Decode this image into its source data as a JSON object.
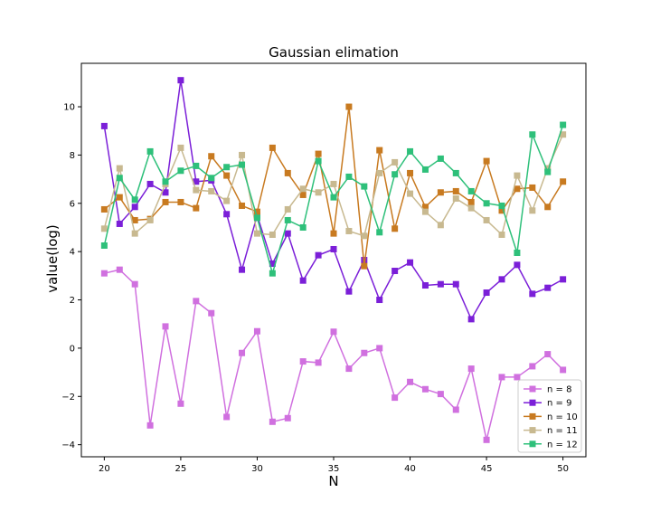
{
  "chart_data": {
    "type": "line",
    "title": "Gaussian elimation",
    "xlabel": "N",
    "ylabel": "value(log)",
    "xlim": [
      18.5,
      51.5
    ],
    "ylim": [
      -4.5,
      11.8
    ],
    "xticks": [
      20,
      25,
      30,
      35,
      40,
      45,
      50
    ],
    "yticks": [
      -4,
      -2,
      0,
      2,
      4,
      6,
      8,
      10
    ],
    "xtick_labels": [
      "20",
      "25",
      "30",
      "35",
      "40",
      "45",
      "50"
    ],
    "ytick_labels": [
      "−4",
      "−2",
      "0",
      "2",
      "4",
      "6",
      "8",
      "10"
    ],
    "grid": false,
    "legend_position": "lower-right",
    "marker": "square",
    "x": [
      20,
      21,
      22,
      23,
      24,
      25,
      26,
      27,
      28,
      29,
      30,
      31,
      32,
      33,
      34,
      35,
      36,
      37,
      38,
      39,
      40,
      41,
      42,
      43,
      44,
      45,
      46,
      47,
      48,
      49,
      50
    ],
    "series": [
      {
        "name": "n = 8",
        "color": "#d070df",
        "values": [
          3.1,
          3.25,
          2.65,
          -3.2,
          0.9,
          -2.3,
          1.95,
          1.45,
          -2.85,
          -0.2,
          0.7,
          -3.05,
          -2.9,
          -0.55,
          -0.6,
          0.68,
          -0.85,
          -0.2,
          0.0,
          -2.05,
          -1.4,
          -1.7,
          -1.9,
          -2.55,
          -0.85,
          -3.8,
          -1.2,
          -1.2,
          -0.75,
          -0.25,
          -0.9
        ]
      },
      {
        "name": "n = 9",
        "color": "#7b1fd8",
        "values": [
          9.2,
          5.15,
          5.85,
          6.8,
          6.45,
          11.1,
          6.9,
          6.95,
          5.55,
          3.25,
          5.5,
          3.5,
          4.75,
          2.8,
          3.85,
          4.1,
          2.35,
          3.65,
          2.0,
          3.2,
          3.55,
          2.6,
          2.65,
          2.65,
          1.2,
          2.3,
          2.85,
          3.45,
          2.25,
          2.5,
          2.85
        ]
      },
      {
        "name": "n = 10",
        "color": "#c87a20",
        "values": [
          5.75,
          6.25,
          5.3,
          5.35,
          6.05,
          6.05,
          5.8,
          7.95,
          7.15,
          5.9,
          5.65,
          8.3,
          7.25,
          6.35,
          8.05,
          4.75,
          10.0,
          3.4,
          8.2,
          4.95,
          7.25,
          5.85,
          6.45,
          6.5,
          6.05,
          7.75,
          5.7,
          6.6,
          6.65,
          5.85,
          6.9
        ]
      },
      {
        "name": "n = 11",
        "color": "#c8b990",
        "values": [
          4.95,
          7.45,
          4.75,
          5.3,
          6.8,
          8.3,
          6.55,
          6.5,
          6.1,
          8.0,
          4.75,
          4.7,
          5.75,
          6.6,
          6.45,
          6.8,
          4.85,
          4.65,
          7.25,
          7.7,
          6.4,
          5.65,
          5.1,
          6.2,
          5.8,
          5.3,
          4.7,
          7.15,
          5.7,
          7.45,
          8.85
        ]
      },
      {
        "name": "n = 12",
        "color": "#2ec07a",
        "values": [
          4.25,
          7.05,
          6.15,
          8.15,
          6.9,
          7.35,
          7.55,
          7.05,
          7.5,
          7.6,
          5.4,
          3.1,
          5.3,
          5.0,
          7.75,
          6.25,
          7.1,
          6.7,
          4.8,
          7.2,
          8.15,
          7.4,
          7.85,
          7.25,
          6.5,
          6.0,
          5.9,
          3.95,
          8.85,
          7.3,
          9.25
        ]
      }
    ]
  }
}
